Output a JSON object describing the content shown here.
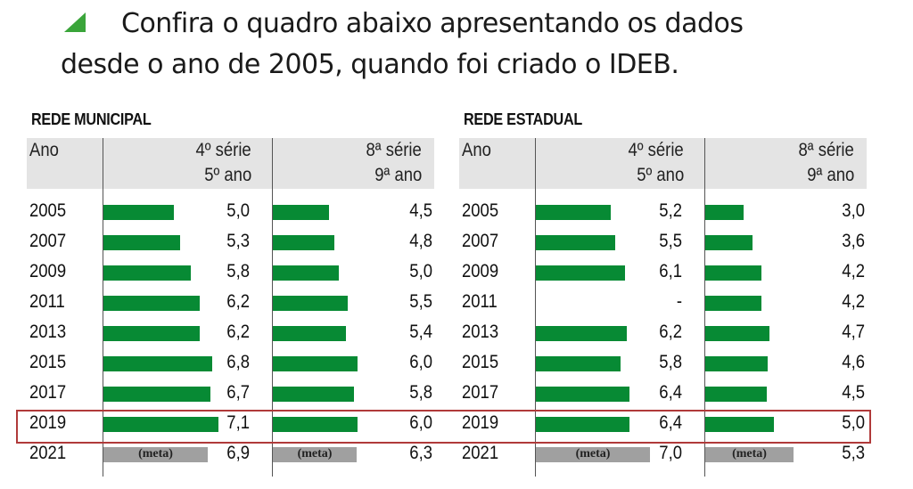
{
  "intro": {
    "line1": "Confira o quadro abaixo apresentando os dados",
    "line2": "desde o ano de 2005, quando foi criado o IDEB."
  },
  "colors": {
    "bar": "#078a34",
    "meta_bar": "#a0a0a0",
    "header_bg": "#e4e4e4",
    "highlight_border": "#b03a3a",
    "bullet": "#3aa53a"
  },
  "chart_data": [
    {
      "type": "table",
      "title": "REDE MUNICIPAL",
      "headers": {
        "year": "Ano",
        "col1_l1": "4º série",
        "col1_l2": "5º ano",
        "col2_l1": "8ª série",
        "col2_l2": "9ª ano"
      },
      "years": [
        "2005",
        "2007",
        "2009",
        "2011",
        "2013",
        "2015",
        "2017",
        "2019",
        "2021"
      ],
      "col1": [
        "5,0",
        "5,3",
        "5,8",
        "6,2",
        "6,2",
        "6,8",
        "6,7",
        "7,1",
        "6,9"
      ],
      "col2": [
        "4,5",
        "4,8",
        "5,0",
        "5,5",
        "5,4",
        "6,0",
        "5,8",
        "6,0",
        "6,3"
      ],
      "meta_label": "(meta)",
      "meta_year": "2021",
      "highlight_year": "2019"
    },
    {
      "type": "table",
      "title": "REDE ESTADUAL",
      "headers": {
        "year": "Ano",
        "col1_l1": "4º série",
        "col1_l2": "5º ano",
        "col2_l1": "8ª série",
        "col2_l2": "9ª ano"
      },
      "years": [
        "2005",
        "2007",
        "2009",
        "2011",
        "2013",
        "2015",
        "2017",
        "2019",
        "2021"
      ],
      "col1": [
        "5,2",
        "5,5",
        "6,1",
        "-",
        "6,2",
        "5,8",
        "6,4",
        "6,4",
        "7,0"
      ],
      "col2": [
        "3,0",
        "3,6",
        "4,2",
        "4,2",
        "4,7",
        "4,6",
        "4,5",
        "5,0",
        "5,3"
      ],
      "meta_label": "(meta)",
      "meta_year": "2021",
      "highlight_year": "2019"
    }
  ]
}
